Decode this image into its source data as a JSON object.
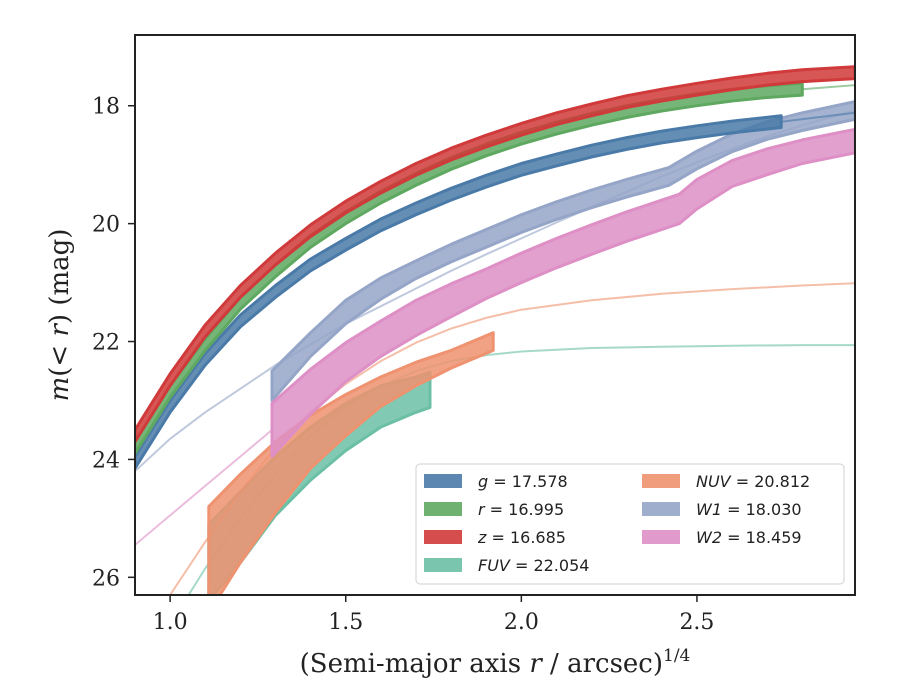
{
  "chart_data": {
    "type": "line",
    "title": "",
    "xlabel": "(Semi-major axis r / arcsec)",
    "xlabel_italic_var": "r",
    "xlabel_exponent": "1/4",
    "ylabel": "m(< r) (mag)",
    "xlim": [
      0.9,
      2.95
    ],
    "ylim": [
      26.3,
      16.8
    ],
    "y_inverted": true,
    "xticks": [
      1.0,
      1.5,
      2.0,
      2.5
    ],
    "xtick_labels": [
      "1.0",
      "1.5",
      "2.0",
      "2.5"
    ],
    "yticks": [
      18,
      20,
      22,
      24,
      26
    ],
    "ytick_labels": [
      "18",
      "20",
      "22",
      "24",
      "26"
    ],
    "grid": false,
    "legend_position": "lower-right",
    "series": [
      {
        "name": "g = 17.578",
        "band": "g",
        "value": "17.578",
        "color": "#4a7aa8",
        "thin_points": [
          [
            2.74,
            18.27
          ],
          [
            2.95,
            18.12
          ]
        ],
        "band_points": [
          [
            0.9,
            24.05,
            0.1
          ],
          [
            1.0,
            23.1,
            0.1
          ],
          [
            1.1,
            22.3,
            0.1
          ],
          [
            1.2,
            21.65,
            0.1
          ],
          [
            1.3,
            21.15,
            0.1
          ],
          [
            1.4,
            20.7,
            0.1
          ],
          [
            1.5,
            20.35,
            0.1
          ],
          [
            1.6,
            20.02,
            0.1
          ],
          [
            1.7,
            19.75,
            0.1
          ],
          [
            1.8,
            19.5,
            0.1
          ],
          [
            1.9,
            19.28,
            0.1
          ],
          [
            2.0,
            19.08,
            0.1
          ],
          [
            2.1,
            18.92,
            0.1
          ],
          [
            2.2,
            18.77,
            0.1
          ],
          [
            2.3,
            18.64,
            0.1
          ],
          [
            2.4,
            18.53,
            0.1
          ],
          [
            2.5,
            18.44,
            0.1
          ],
          [
            2.6,
            18.36,
            0.1
          ],
          [
            2.74,
            18.27,
            0.1
          ]
        ]
      },
      {
        "name": "r = 16.995",
        "band": "r",
        "value": "16.995",
        "color": "#5ea860",
        "thin_points": [
          [
            2.8,
            17.72
          ],
          [
            2.95,
            17.65
          ]
        ],
        "band_points": [
          [
            0.9,
            23.8,
            0.1
          ],
          [
            1.0,
            22.85,
            0.1
          ],
          [
            1.1,
            22.05,
            0.1
          ],
          [
            1.2,
            21.35,
            0.1
          ],
          [
            1.3,
            20.8,
            0.1
          ],
          [
            1.4,
            20.3,
            0.1
          ],
          [
            1.5,
            19.9,
            0.1
          ],
          [
            1.6,
            19.55,
            0.1
          ],
          [
            1.7,
            19.25,
            0.1
          ],
          [
            1.8,
            18.98,
            0.1
          ],
          [
            1.9,
            18.75,
            0.1
          ],
          [
            2.0,
            18.55,
            0.1
          ],
          [
            2.1,
            18.38,
            0.1
          ],
          [
            2.2,
            18.23,
            0.1
          ],
          [
            2.3,
            18.1,
            0.1
          ],
          [
            2.4,
            17.99,
            0.1
          ],
          [
            2.5,
            17.9,
            0.1
          ],
          [
            2.6,
            17.82,
            0.1
          ],
          [
            2.7,
            17.76,
            0.1
          ],
          [
            2.8,
            17.72,
            0.1
          ]
        ]
      },
      {
        "name": "z = 16.685",
        "band": "z",
        "value": "16.685",
        "color": "#d03a3a",
        "thin_points": [],
        "band_points": [
          [
            0.9,
            23.6,
            0.1
          ],
          [
            1.0,
            22.65,
            0.1
          ],
          [
            1.1,
            21.82,
            0.1
          ],
          [
            1.2,
            21.15,
            0.1
          ],
          [
            1.3,
            20.6,
            0.1
          ],
          [
            1.4,
            20.12,
            0.1
          ],
          [
            1.5,
            19.72,
            0.1
          ],
          [
            1.6,
            19.38,
            0.1
          ],
          [
            1.7,
            19.08,
            0.1
          ],
          [
            1.8,
            18.82,
            0.1
          ],
          [
            1.9,
            18.6,
            0.1
          ],
          [
            2.0,
            18.4,
            0.1
          ],
          [
            2.1,
            18.22,
            0.1
          ],
          [
            2.2,
            18.07,
            0.1
          ],
          [
            2.3,
            17.93,
            0.1
          ],
          [
            2.4,
            17.82,
            0.1
          ],
          [
            2.5,
            17.72,
            0.1
          ],
          [
            2.6,
            17.63,
            0.1
          ],
          [
            2.7,
            17.55,
            0.1
          ],
          [
            2.8,
            17.49,
            0.1
          ],
          [
            2.95,
            17.44,
            0.1
          ]
        ]
      },
      {
        "name": "FUV = 22.054",
        "band": "FUV",
        "value": "22.054",
        "color": "#6bbfa5",
        "thin_points": [
          [
            0.9,
            27.5
          ],
          [
            1.0,
            26.8
          ],
          [
            1.1,
            25.85
          ],
          [
            1.2,
            25.0
          ],
          [
            1.3,
            24.25
          ],
          [
            1.4,
            23.6
          ],
          [
            1.5,
            23.1
          ],
          [
            1.6,
            22.75
          ],
          [
            1.7,
            22.5
          ],
          [
            1.8,
            22.33
          ],
          [
            1.9,
            22.23
          ],
          [
            2.0,
            22.17
          ],
          [
            2.2,
            22.11
          ],
          [
            2.4,
            22.09
          ],
          [
            2.6,
            22.07
          ],
          [
            2.8,
            22.06
          ],
          [
            2.95,
            22.06
          ]
        ],
        "band_points": [
          [
            1.11,
            25.75,
            0.65
          ],
          [
            1.2,
            25.15,
            0.6
          ],
          [
            1.3,
            24.45,
            0.5
          ],
          [
            1.4,
            23.9,
            0.45
          ],
          [
            1.5,
            23.45,
            0.4
          ],
          [
            1.6,
            23.1,
            0.35
          ],
          [
            1.7,
            22.9,
            0.3
          ],
          [
            1.74,
            22.82,
            0.3
          ]
        ]
      },
      {
        "name": "NUV = 20.812",
        "band": "NUV",
        "value": "20.812",
        "color": "#ee9270",
        "thin_points": [
          [
            0.9,
            27.2
          ],
          [
            1.0,
            26.3
          ],
          [
            1.1,
            25.4
          ],
          [
            1.2,
            24.55
          ],
          [
            1.3,
            23.8
          ],
          [
            1.4,
            23.2
          ],
          [
            1.5,
            22.72
          ],
          [
            1.6,
            22.33
          ],
          [
            1.7,
            22.02
          ],
          [
            1.8,
            21.78
          ],
          [
            1.9,
            21.6
          ],
          [
            2.0,
            21.46
          ],
          [
            2.2,
            21.3
          ],
          [
            2.4,
            21.19
          ],
          [
            2.6,
            21.11
          ],
          [
            2.8,
            21.05
          ],
          [
            2.95,
            21.01
          ]
        ],
        "band_points": [
          [
            1.11,
            25.7,
            0.9
          ],
          [
            1.2,
            25.0,
            0.75
          ],
          [
            1.3,
            24.3,
            0.6
          ],
          [
            1.4,
            23.7,
            0.45
          ],
          [
            1.5,
            23.25,
            0.35
          ],
          [
            1.6,
            22.85,
            0.25
          ],
          [
            1.7,
            22.55,
            0.2
          ],
          [
            1.8,
            22.3,
            0.15
          ],
          [
            1.92,
            22.0,
            0.15
          ]
        ]
      },
      {
        "name": "W1 = 18.030",
        "band": "W1",
        "value": "18.030",
        "color": "#95a5c8",
        "thin_points": [
          [
            0.9,
            24.2
          ],
          [
            1.0,
            23.65
          ],
          [
            1.1,
            23.2
          ],
          [
            1.2,
            22.8
          ],
          [
            1.3,
            22.4
          ],
          [
            1.4,
            22.05
          ],
          [
            1.5,
            21.7
          ],
          [
            1.6,
            21.4
          ],
          [
            1.7,
            21.1
          ],
          [
            1.8,
            20.8
          ],
          [
            1.9,
            20.52
          ],
          [
            2.0,
            20.25
          ],
          [
            2.1,
            19.98
          ],
          [
            2.2,
            19.72
          ],
          [
            2.3,
            19.46
          ],
          [
            2.4,
            19.2
          ],
          [
            2.5,
            18.96
          ],
          [
            2.6,
            18.73
          ],
          [
            2.7,
            18.52
          ],
          [
            2.8,
            18.33
          ],
          [
            2.95,
            18.08
          ]
        ],
        "band_points": [
          [
            1.29,
            22.75,
            0.25
          ],
          [
            1.4,
            22.05,
            0.2
          ],
          [
            1.5,
            21.5,
            0.2
          ],
          [
            1.6,
            21.1,
            0.18
          ],
          [
            1.7,
            20.78,
            0.15
          ],
          [
            1.8,
            20.5,
            0.15
          ],
          [
            1.9,
            20.25,
            0.15
          ],
          [
            2.0,
            20.0,
            0.15
          ],
          [
            2.1,
            19.78,
            0.15
          ],
          [
            2.2,
            19.58,
            0.15
          ],
          [
            2.3,
            19.4,
            0.15
          ],
          [
            2.42,
            19.2,
            0.15
          ],
          [
            2.5,
            18.92,
            0.15
          ],
          [
            2.6,
            18.63,
            0.15
          ],
          [
            2.7,
            18.42,
            0.15
          ],
          [
            2.8,
            18.27,
            0.15
          ],
          [
            2.95,
            18.08,
            0.15
          ]
        ]
      },
      {
        "name": "W2 = 18.459",
        "band": "W2",
        "value": "18.459",
        "color": "#dd8fc6",
        "thin_points": [
          [
            0.9,
            25.45
          ],
          [
            1.0,
            24.95
          ],
          [
            1.1,
            24.45
          ],
          [
            1.2,
            23.95
          ],
          [
            1.29,
            23.5
          ]
        ],
        "band_points": [
          [
            1.29,
            23.5,
            0.45
          ],
          [
            1.4,
            22.85,
            0.38
          ],
          [
            1.5,
            22.35,
            0.33
          ],
          [
            1.6,
            21.95,
            0.3
          ],
          [
            1.7,
            21.6,
            0.3
          ],
          [
            1.8,
            21.3,
            0.28
          ],
          [
            1.9,
            21.02,
            0.25
          ],
          [
            2.0,
            20.75,
            0.25
          ],
          [
            2.1,
            20.5,
            0.25
          ],
          [
            2.2,
            20.27,
            0.25
          ],
          [
            2.3,
            20.05,
            0.25
          ],
          [
            2.45,
            19.75,
            0.25
          ],
          [
            2.5,
            19.5,
            0.25
          ],
          [
            2.6,
            19.15,
            0.22
          ],
          [
            2.7,
            18.95,
            0.22
          ],
          [
            2.8,
            18.78,
            0.2
          ],
          [
            2.95,
            18.6,
            0.2
          ]
        ]
      }
    ],
    "legend_columns": [
      [
        "g = 17.578",
        "r = 16.995",
        "z = 16.685",
        "FUV = 22.054"
      ],
      [
        "NUV = 20.812",
        "W1 = 18.030",
        "W2 = 18.459"
      ]
    ]
  }
}
